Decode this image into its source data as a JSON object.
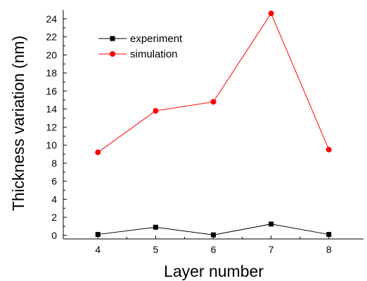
{
  "chart_data": {
    "type": "line",
    "xlabel": "Layer number",
    "ylabel": "Thickness variation (nm)",
    "x": [
      4,
      5,
      6,
      7,
      8
    ],
    "xlim": [
      3.4,
      8.6
    ],
    "ylim": [
      -0.4,
      25
    ],
    "x_ticks": [
      4,
      5,
      6,
      7,
      8
    ],
    "y_ticks": [
      0,
      2,
      4,
      6,
      8,
      10,
      12,
      14,
      16,
      18,
      20,
      22,
      24
    ],
    "grid": false,
    "legend_position": "top-left",
    "series": [
      {
        "name": "experiment",
        "values": [
          0.1,
          0.9,
          0.05,
          1.25,
          0.1
        ],
        "color": "#000000",
        "marker": "square"
      },
      {
        "name": "simulation",
        "values": [
          9.2,
          13.8,
          14.8,
          24.6,
          9.5
        ],
        "color": "#ff0000",
        "marker": "circle"
      }
    ]
  }
}
